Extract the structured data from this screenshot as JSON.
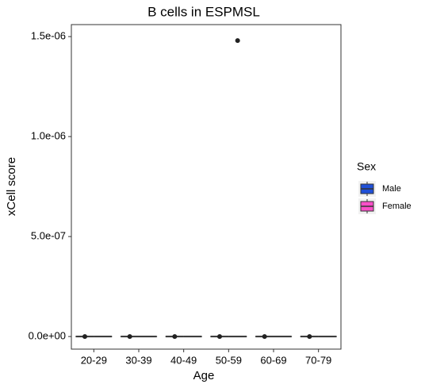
{
  "chart_data": {
    "type": "box",
    "title": "B cells in ESPMSL",
    "x_label": "Age",
    "y_label": "xCell score",
    "categories": [
      "20-29",
      "30-39",
      "40-49",
      "50-59",
      "60-69",
      "70-79"
    ],
    "legend_title": "Sex",
    "series": [
      {
        "name": "Male",
        "color": "#1f50d8",
        "whisker_low": [
          0,
          0,
          0,
          0,
          0,
          0
        ],
        "q1": [
          0,
          0,
          0,
          0,
          0,
          0
        ],
        "median": [
          0,
          0,
          0,
          0,
          0,
          0
        ],
        "q3": [
          0,
          0,
          0,
          0,
          0,
          0
        ],
        "whisker_high": [
          0,
          0,
          0,
          0,
          0,
          0
        ],
        "outliers": [
          [
            0
          ],
          [
            0
          ],
          [
            0
          ],
          [
            0
          ],
          [
            0
          ],
          [
            0
          ]
        ]
      },
      {
        "name": "Female",
        "color": "#fb4fc9",
        "whisker_low": [
          0,
          0,
          0,
          0,
          0,
          0
        ],
        "q1": [
          0,
          0,
          0,
          0,
          0,
          0
        ],
        "median": [
          0,
          0,
          0,
          0,
          0,
          0
        ],
        "q3": [
          0,
          0,
          0,
          0,
          0,
          0
        ],
        "whisker_high": [
          0,
          0,
          0,
          0,
          0,
          0
        ],
        "outliers": [
          [],
          [],
          [],
          [
            1.48e-06
          ],
          [],
          []
        ]
      }
    ],
    "ylim": [
      -6.3e-08,
      1.56e-06
    ],
    "yticks": [
      {
        "value": 0,
        "label": "0.0e+00"
      },
      {
        "value": 5e-07,
        "label": "5.0e-07"
      },
      {
        "value": 1e-06,
        "label": "1.0e-06"
      },
      {
        "value": 1.5e-06,
        "label": "1.5e-06"
      }
    ]
  }
}
